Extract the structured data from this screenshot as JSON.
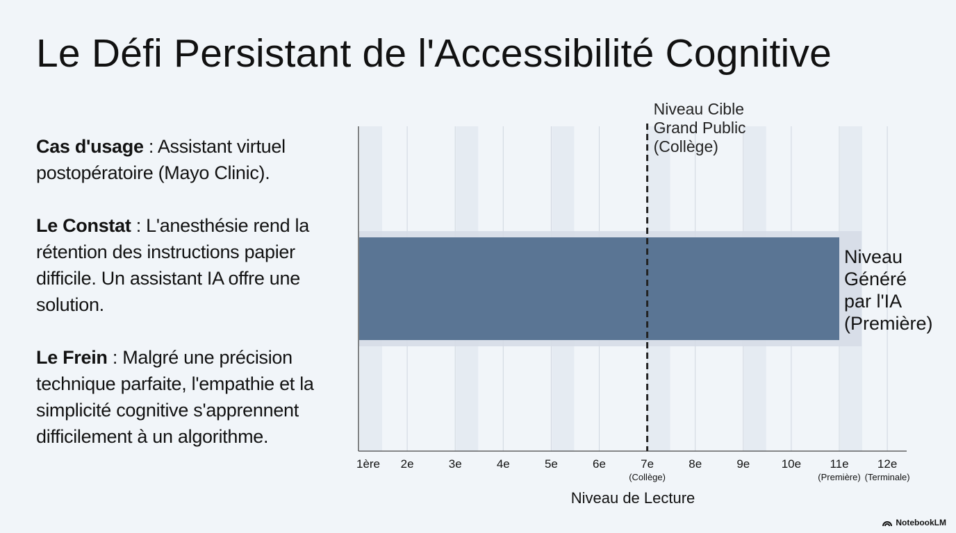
{
  "slide": {
    "title": "Le Défi Persistant de l'Accessibilité Cognitive",
    "paragraphs": [
      {
        "label": "Cas d'usage",
        "sep": " : ",
        "text": "Assistant virtuel postopératoire (Mayo Clinic)."
      },
      {
        "label": "Le Constat",
        "sep": " : ",
        "text": "L'anesthésie rend la rétention des instructions papier difficile. Un assistant IA offre une solution."
      },
      {
        "label": "Le Frein",
        "sep": " : ",
        "text": "Malgré une précision technique parfaite, l'empathie et la simplicité cognitive s'apprennent difficilement à un algorithme."
      }
    ],
    "brand": "NotebookLM"
  },
  "chart_data": {
    "type": "bar",
    "orientation": "horizontal",
    "xlabel": "Niveau de Lecture",
    "categories": [
      "1ère",
      "2e",
      "3e",
      "4e",
      "5e",
      "6e",
      "7e",
      "8e",
      "9e",
      "10e",
      "11e",
      "12e"
    ],
    "sublabels": [
      "",
      "",
      "",
      "",
      "",
      "",
      "(Collège)",
      "",
      "",
      "",
      "(Première)",
      "(Terminale)"
    ],
    "xlim": [
      1,
      12
    ],
    "series": [
      {
        "label": "Niveau Généré par l'IA (Première)",
        "start": 1,
        "end": 11,
        "color": "#5a7594"
      }
    ],
    "target_line": {
      "value": 7,
      "label": "Niveau Cible Grand Public (Collège)",
      "style": "dashed"
    },
    "grid": true
  }
}
